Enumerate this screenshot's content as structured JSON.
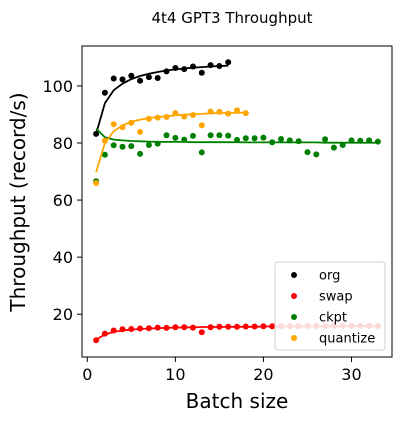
{
  "chart_data": {
    "type": "scatter",
    "title": "4t4 GPT3 Throughput",
    "xlabel": "Batch size",
    "ylabel": "Throughput (record/s)",
    "xlim": [
      -0.6,
      34.6
    ],
    "ylim": [
      5,
      114
    ],
    "xticks": [
      0,
      10,
      20,
      30
    ],
    "yticks": [
      20,
      40,
      60,
      80,
      100
    ],
    "legend_position": "lower-right",
    "series": [
      {
        "name": "org",
        "color": "#000000",
        "x": [
          1,
          2,
          3,
          4,
          5,
          6,
          7,
          8,
          9,
          10,
          11,
          12,
          13,
          14,
          15,
          16
        ],
        "y": [
          83.2,
          97.6,
          102.6,
          102.3,
          103.6,
          101.8,
          103.1,
          102.8,
          105.1,
          106.3,
          105.9,
          106.8,
          104.6,
          107.3,
          107.0,
          108.3
        ],
        "fit_y": [
          83.2,
          94.0,
          98.5,
          100.8,
          102.4,
          103.5,
          104.3,
          104.9,
          105.4,
          105.8,
          106.1,
          106.4,
          106.6,
          106.8,
          107.0,
          107.1
        ]
      },
      {
        "name": "swap",
        "color": "#ff0000",
        "x": [
          1,
          2,
          3,
          4,
          5,
          6,
          7,
          8,
          9,
          10,
          11,
          12,
          13,
          14,
          15,
          16,
          17,
          18,
          19,
          20,
          21,
          22,
          23,
          24,
          25,
          26,
          27,
          28,
          29,
          30,
          31,
          32,
          33
        ],
        "y": [
          10.9,
          13.2,
          14.3,
          14.7,
          14.8,
          15.0,
          15.1,
          15.3,
          15.2,
          15.4,
          15.4,
          15.3,
          13.7,
          15.4,
          15.6,
          15.6,
          15.6,
          15.7,
          15.7,
          15.8,
          15.8,
          15.8,
          15.8,
          15.8,
          15.9,
          15.9,
          15.9,
          15.9,
          15.9,
          15.9,
          15.9,
          15.9,
          15.9
        ],
        "fit_y": [
          11.1,
          12.9,
          13.8,
          14.3,
          14.6,
          14.8,
          15.0,
          15.1,
          15.2,
          15.3,
          15.4,
          15.4,
          15.5,
          15.5,
          15.5,
          15.6,
          15.6,
          15.6,
          15.6,
          15.7,
          15.7,
          15.7,
          15.7,
          15.7,
          15.7,
          15.7,
          15.8,
          15.8,
          15.8,
          15.8,
          15.8,
          15.8,
          15.8
        ]
      },
      {
        "name": "ckpt",
        "color": "#008000",
        "x": [
          1,
          2,
          3,
          4,
          5,
          6,
          7,
          8,
          9,
          10,
          11,
          12,
          13,
          14,
          15,
          16,
          17,
          18,
          19,
          20,
          21,
          22,
          23,
          24,
          25,
          26,
          27,
          28,
          29,
          30,
          31,
          32,
          33
        ],
        "y": [
          66.6,
          75.9,
          79.2,
          78.7,
          78.9,
          76.2,
          79.3,
          79.8,
          82.7,
          81.8,
          81.2,
          82.5,
          76.7,
          82.7,
          82.7,
          82.6,
          81.1,
          81.7,
          81.7,
          81.9,
          80.3,
          81.4,
          80.9,
          80.6,
          76.8,
          76.0,
          81.3,
          78.4,
          79.3,
          80.9,
          80.8,
          80.9,
          80.5
        ],
        "fit_y": [
          85.1,
          82.0,
          81.2,
          80.9,
          80.7,
          80.6,
          80.5,
          80.4,
          80.4,
          80.4,
          80.4,
          80.3,
          80.3,
          80.3,
          80.3,
          80.3,
          80.3,
          80.2,
          80.2,
          80.2,
          80.2,
          80.2,
          80.2,
          80.2,
          80.2,
          80.2,
          80.1,
          80.1,
          80.1,
          80.1,
          80.1,
          80.1,
          80.1
        ]
      },
      {
        "name": "quantize",
        "color": "#ffa500",
        "x": [
          1,
          2,
          3,
          4,
          5,
          6,
          7,
          8,
          9,
          10,
          11,
          12,
          13,
          14,
          15,
          16,
          17,
          18
        ],
        "y": [
          66.0,
          80.8,
          86.6,
          85.5,
          87.1,
          83.9,
          88.5,
          88.9,
          89.1,
          90.5,
          89.3,
          89.8,
          86.2,
          91.0,
          90.9,
          90.3,
          91.5,
          90.5
        ],
        "fit_y": [
          69.8,
          80.0,
          84.1,
          86.2,
          87.4,
          88.2,
          88.7,
          89.1,
          89.4,
          89.7,
          89.9,
          90.1,
          90.2,
          90.4,
          90.5,
          90.6,
          90.6,
          90.7
        ]
      }
    ]
  }
}
